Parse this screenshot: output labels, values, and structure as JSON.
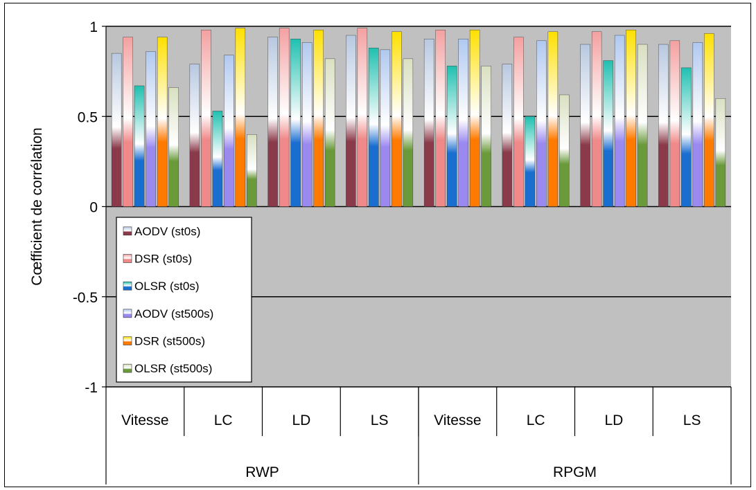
{
  "chart_data": {
    "type": "bar",
    "ylabel": "Cœfficient de corrélation",
    "ylim": [
      -1,
      1
    ],
    "yticks": [
      "1",
      "0.5",
      "0",
      "-0.5",
      "-1"
    ],
    "grid": true,
    "legend_position": "left, inside plot area below zero",
    "categories": [
      "Vitesse",
      "LC",
      "LD",
      "LS",
      "Vitesse",
      "LC",
      "LD",
      "LS"
    ],
    "groups": [
      {
        "label": "RWP",
        "span": 4
      },
      {
        "label": "RPGM",
        "span": 4
      }
    ],
    "series": [
      {
        "name": "AODV (st0s)",
        "color": "#8a3a4a",
        "values": [
          0.85,
          0.79,
          0.94,
          0.95,
          0.93,
          0.79,
          0.9,
          0.9
        ]
      },
      {
        "name": "DSR (st0s)",
        "color": "#f08a8a",
        "values": [
          0.94,
          0.98,
          0.99,
          0.99,
          0.98,
          0.94,
          0.97,
          0.92
        ]
      },
      {
        "name": "OLSR (st0s)",
        "color": "#1a6ed0",
        "values": [
          0.67,
          0.53,
          0.93,
          0.88,
          0.78,
          0.5,
          0.81,
          0.77
        ]
      },
      {
        "name": "AODV (st500s)",
        "color": "#9a8af0",
        "values": [
          0.86,
          0.84,
          0.91,
          0.87,
          0.93,
          0.92,
          0.95,
          0.91
        ]
      },
      {
        "name": "DSR (st500s)",
        "color": "#ff7a00",
        "values": [
          0.94,
          0.99,
          0.98,
          0.97,
          0.98,
          0.97,
          0.98,
          0.96
        ]
      },
      {
        "name": "OLSR (st500s)",
        "color": "#6a9a3a",
        "values": [
          0.66,
          0.4,
          0.82,
          0.82,
          0.78,
          0.62,
          0.9,
          0.6
        ]
      }
    ]
  },
  "colors": {
    "plot_background": "#c0c0c0",
    "gridline": "#000000"
  }
}
